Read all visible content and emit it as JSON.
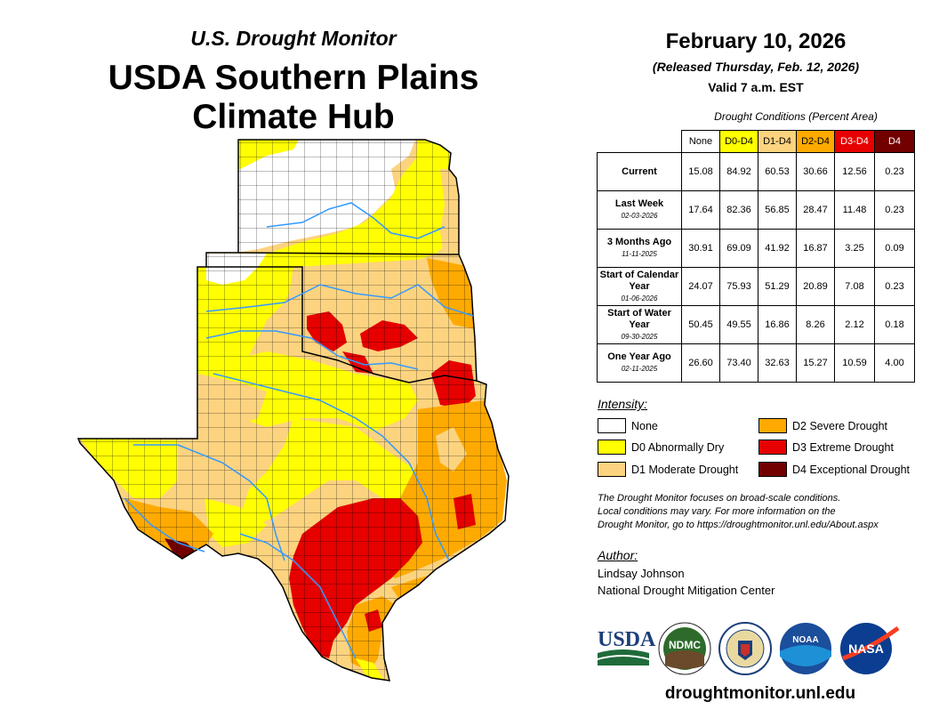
{
  "titles": {
    "top": "U.S. Drought Monitor",
    "main_line1": "USDA Southern Plains",
    "main_line2": "Climate Hub"
  },
  "header": {
    "date": "February 10, 2026",
    "released": "(Released Thursday, Feb. 12, 2026)",
    "valid": "Valid 7 a.m. EST"
  },
  "table": {
    "caption": "Drought Conditions (Percent Area)",
    "columns": [
      {
        "label": "None",
        "color": "#ffffff"
      },
      {
        "label": "D0-D4",
        "color": "#ffff00"
      },
      {
        "label": "D1-D4",
        "color": "#fcd37f"
      },
      {
        "label": "D2-D4",
        "color": "#ffaa00"
      },
      {
        "label": "D3-D4",
        "color": "#e60000"
      },
      {
        "label": "D4",
        "color": "#730000"
      }
    ],
    "rows": [
      {
        "label": "Current",
        "date": "",
        "values": [
          "15.08",
          "84.92",
          "60.53",
          "30.66",
          "12.56",
          "0.23"
        ]
      },
      {
        "label": "Last Week",
        "date": "02-03-2026",
        "values": [
          "17.64",
          "82.36",
          "56.85",
          "28.47",
          "11.48",
          "0.23"
        ]
      },
      {
        "label": "3 Months Ago",
        "date": "11-11-2025",
        "values": [
          "30.91",
          "69.09",
          "41.92",
          "16.87",
          "3.25",
          "0.09"
        ]
      },
      {
        "label": "Start of Calendar Year",
        "date": "01-06-2026",
        "values": [
          "24.07",
          "75.93",
          "51.29",
          "20.89",
          "7.08",
          "0.23"
        ]
      },
      {
        "label": "Start of Water Year",
        "date": "09-30-2025",
        "values": [
          "50.45",
          "49.55",
          "16.86",
          "8.26",
          "2.12",
          "0.18"
        ]
      },
      {
        "label": "One Year Ago",
        "date": "02-11-2025",
        "values": [
          "26.60",
          "73.40",
          "32.63",
          "15.27",
          "10.59",
          "4.00"
        ]
      }
    ]
  },
  "legend": {
    "title": "Intensity:",
    "items": [
      {
        "label": "None",
        "color": "#ffffff"
      },
      {
        "label": "D0 Abnormally Dry",
        "color": "#ffff00"
      },
      {
        "label": "D1 Moderate Drought",
        "color": "#fcd37f"
      },
      {
        "label": "D2 Severe Drought",
        "color": "#ffaa00"
      },
      {
        "label": "D3 Extreme Drought",
        "color": "#e60000"
      },
      {
        "label": "D4 Exceptional Drought",
        "color": "#730000"
      }
    ]
  },
  "note": {
    "line1": "The Drought Monitor focuses on broad-scale conditions.",
    "line2": "Local conditions may vary. For more information on the",
    "line3": "Drought Monitor, go to https://droughtmonitor.unl.edu/About.aspx"
  },
  "author": {
    "title": "Author:",
    "name": "Lindsay Johnson",
    "org": "National Drought Mitigation Center"
  },
  "logos": {
    "usda": "USDA",
    "ndmc": "NDMC",
    "noaa": "NOAA",
    "nasa": "NASA"
  },
  "footer": {
    "website": "droughtmonitor.unl.edu"
  }
}
